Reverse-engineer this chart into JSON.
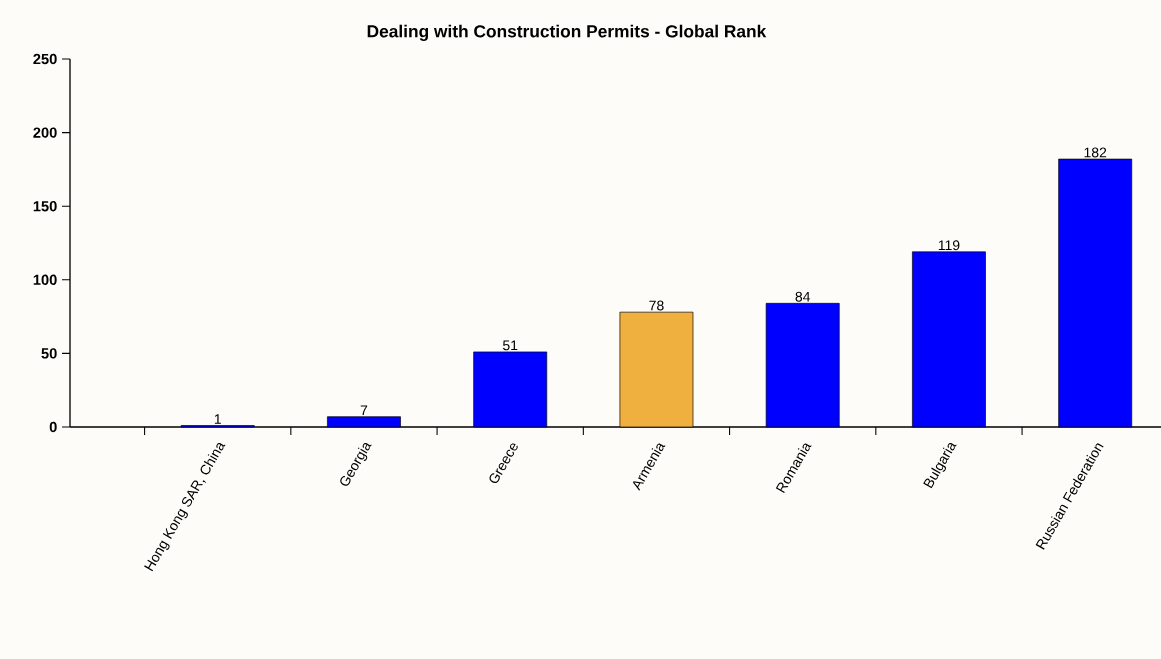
{
  "chart_data": {
    "type": "bar",
    "title": "Dealing with Construction Permits - Global Rank",
    "categories": [
      "Hong Kong SAR, China",
      "Georgia",
      "Greece",
      "Armenia",
      "Romania",
      "Bulgaria",
      "Russian Federation"
    ],
    "values": [
      1,
      7,
      51,
      78,
      84,
      119,
      182
    ],
    "colors": [
      "#0000ff",
      "#0000ff",
      "#0000ff",
      "#f0b040",
      "#0000ff",
      "#0000ff",
      "#0000ff"
    ],
    "ylim": [
      0,
      250
    ],
    "yticks": [
      0,
      50,
      100,
      150,
      200,
      250
    ],
    "grid": false,
    "data_labels": true
  }
}
